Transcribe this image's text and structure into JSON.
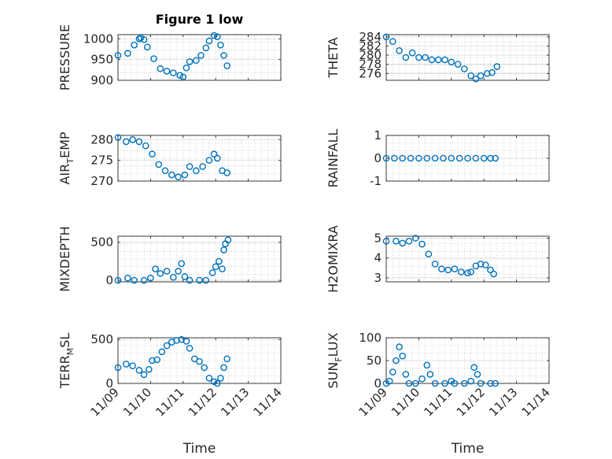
{
  "chart_data": [
    {
      "type": "scatter",
      "title": "Figure 1 low",
      "ylabel": "PRESSURE",
      "ylabel_sub": "",
      "ylabel_rest": "",
      "xlim": [
        0,
        5
      ],
      "ylim": [
        900,
        1010
      ],
      "yticks": [
        900,
        950,
        1000
      ],
      "xticks": [
        0,
        1,
        2,
        3,
        4,
        5
      ],
      "xticklabels": [
        "",
        "",
        "",
        "",
        "",
        ""
      ],
      "xlabel": "",
      "color": "#0072BD",
      "grid": true,
      "points": [
        [
          0,
          960
        ],
        [
          0.3,
          965
        ],
        [
          0.5,
          985
        ],
        [
          0.65,
          1000
        ],
        [
          0.7,
          1002
        ],
        [
          0.8,
          998
        ],
        [
          0.9,
          980
        ],
        [
          1.1,
          952
        ],
        [
          1.3,
          928
        ],
        [
          1.5,
          922
        ],
        [
          1.7,
          918
        ],
        [
          1.9,
          912
        ],
        [
          2.0,
          908
        ],
        [
          2.1,
          930
        ],
        [
          2.2,
          945
        ],
        [
          2.4,
          948
        ],
        [
          2.55,
          960
        ],
        [
          2.7,
          978
        ],
        [
          2.8,
          995
        ],
        [
          2.95,
          1008
        ],
        [
          3.05,
          1005
        ],
        [
          3.15,
          985
        ],
        [
          3.25,
          960
        ],
        [
          3.35,
          935
        ]
      ]
    },
    {
      "type": "scatter",
      "title": "",
      "ylabel": "THETA",
      "ylabel_sub": "",
      "ylabel_rest": "",
      "xlim": [
        0,
        5
      ],
      "ylim": [
        274.5,
        284.5
      ],
      "yticks": [
        276,
        278,
        280,
        282,
        284
      ],
      "xticks": [
        0,
        1,
        2,
        3,
        4,
        5
      ],
      "xticklabels": [
        "",
        "",
        "",
        "",
        "",
        ""
      ],
      "xlabel": "",
      "color": "#0072BD",
      "grid": true,
      "points": [
        [
          0,
          284
        ],
        [
          0.2,
          283
        ],
        [
          0.4,
          281
        ],
        [
          0.6,
          279.5
        ],
        [
          0.8,
          280.5
        ],
        [
          1.0,
          279.5
        ],
        [
          1.2,
          279.5
        ],
        [
          1.4,
          279
        ],
        [
          1.6,
          279
        ],
        [
          1.8,
          279
        ],
        [
          2.0,
          278.5
        ],
        [
          2.2,
          278
        ],
        [
          2.4,
          277
        ],
        [
          2.6,
          275.5
        ],
        [
          2.75,
          274.8
        ],
        [
          2.9,
          275.5
        ],
        [
          3.1,
          276
        ],
        [
          3.25,
          276.2
        ],
        [
          3.4,
          277.5
        ]
      ]
    },
    {
      "type": "scatter",
      "title": "",
      "ylabel": "AIR",
      "ylabel_sub": "T",
      "ylabel_rest": "EMP",
      "xlim": [
        0,
        5
      ],
      "ylim": [
        270,
        281
      ],
      "yticks": [
        270,
        275,
        280
      ],
      "xticks": [
        0,
        1,
        2,
        3,
        4,
        5
      ],
      "xticklabels": [
        "",
        "",
        "",
        "",
        "",
        ""
      ],
      "xlabel": "",
      "color": "#0072BD",
      "grid": true,
      "points": [
        [
          0,
          280.5
        ],
        [
          0.25,
          279.5
        ],
        [
          0.45,
          280
        ],
        [
          0.65,
          279.5
        ],
        [
          0.85,
          278.5
        ],
        [
          1.05,
          276.5
        ],
        [
          1.25,
          274
        ],
        [
          1.45,
          272.5
        ],
        [
          1.65,
          271.5
        ],
        [
          1.85,
          271
        ],
        [
          2.05,
          271.5
        ],
        [
          2.2,
          273.5
        ],
        [
          2.4,
          272.5
        ],
        [
          2.6,
          273.5
        ],
        [
          2.8,
          275
        ],
        [
          2.95,
          276.5
        ],
        [
          3.05,
          275.5
        ],
        [
          3.2,
          272.5
        ],
        [
          3.35,
          272
        ]
      ]
    },
    {
      "type": "scatter",
      "title": "",
      "ylabel": "RAINFALL",
      "ylabel_sub": "",
      "ylabel_rest": "",
      "xlim": [
        0,
        5
      ],
      "ylim": [
        -1,
        1
      ],
      "yticks": [
        -1,
        0,
        1
      ],
      "xticks": [
        0,
        1,
        2,
        3,
        4,
        5
      ],
      "xticklabels": [
        "",
        "",
        "",
        "",
        "",
        ""
      ],
      "xlabel": "",
      "color": "#0072BD",
      "grid": true,
      "points": [
        [
          0,
          0
        ],
        [
          0.25,
          0
        ],
        [
          0.5,
          0
        ],
        [
          0.75,
          0
        ],
        [
          1.0,
          0
        ],
        [
          1.25,
          0
        ],
        [
          1.5,
          0
        ],
        [
          1.75,
          0
        ],
        [
          2.0,
          0
        ],
        [
          2.25,
          0
        ],
        [
          2.5,
          0
        ],
        [
          2.75,
          0
        ],
        [
          3.0,
          0
        ],
        [
          3.2,
          0
        ],
        [
          3.35,
          0
        ]
      ]
    },
    {
      "type": "scatter",
      "title": "",
      "ylabel": "MIXDEPTH",
      "ylabel_sub": "",
      "ylabel_rest": "",
      "xlim": [
        0,
        5
      ],
      "ylim": [
        -20,
        580
      ],
      "yticks": [
        0,
        500
      ],
      "xticks": [
        0,
        1,
        2,
        3,
        4,
        5
      ],
      "xticklabels": [
        "",
        "",
        "",
        "",
        "",
        ""
      ],
      "xlabel": "",
      "color": "#0072BD",
      "grid": true,
      "points": [
        [
          0,
          0
        ],
        [
          0.3,
          30
        ],
        [
          0.5,
          0
        ],
        [
          0.8,
          0
        ],
        [
          1.0,
          30
        ],
        [
          1.15,
          150
        ],
        [
          1.3,
          90
        ],
        [
          1.5,
          120
        ],
        [
          1.7,
          40
        ],
        [
          1.85,
          120
        ],
        [
          1.95,
          220
        ],
        [
          2.05,
          50
        ],
        [
          2.2,
          0
        ],
        [
          2.5,
          0
        ],
        [
          2.7,
          0
        ],
        [
          2.9,
          100
        ],
        [
          3.0,
          180
        ],
        [
          3.1,
          250
        ],
        [
          3.2,
          150
        ],
        [
          3.25,
          400
        ],
        [
          3.3,
          480
        ],
        [
          3.38,
          530
        ]
      ]
    },
    {
      "type": "scatter",
      "title": "",
      "ylabel": "H2OMIXRA",
      "ylabel_sub": "",
      "ylabel_rest": "",
      "xlim": [
        0,
        5
      ],
      "ylim": [
        2.8,
        5.1
      ],
      "yticks": [
        3,
        4,
        5
      ],
      "xticks": [
        0,
        1,
        2,
        3,
        4,
        5
      ],
      "xticklabels": [
        "",
        "",
        "",
        "",
        "",
        ""
      ],
      "xlabel": "",
      "color": "#0072BD",
      "grid": true,
      "points": [
        [
          0,
          4.85
        ],
        [
          0.3,
          4.85
        ],
        [
          0.5,
          4.75
        ],
        [
          0.7,
          4.85
        ],
        [
          0.9,
          5.0
        ],
        [
          1.1,
          4.7
        ],
        [
          1.3,
          4.2
        ],
        [
          1.5,
          3.7
        ],
        [
          1.7,
          3.45
        ],
        [
          1.9,
          3.4
        ],
        [
          2.1,
          3.45
        ],
        [
          2.3,
          3.3
        ],
        [
          2.5,
          3.25
        ],
        [
          2.6,
          3.3
        ],
        [
          2.75,
          3.6
        ],
        [
          2.9,
          3.7
        ],
        [
          3.05,
          3.65
        ],
        [
          3.2,
          3.4
        ],
        [
          3.3,
          3.2
        ]
      ]
    },
    {
      "type": "scatter",
      "title": "",
      "ylabel": "TERR",
      "ylabel_sub": "M",
      "ylabel_rest": "SL",
      "xlim": [
        0,
        5
      ],
      "ylim": [
        0,
        520
      ],
      "yticks": [
        0,
        500
      ],
      "xticks": [
        0,
        1,
        2,
        3,
        4,
        5
      ],
      "xticklabels": [
        "11/09",
        "11/10",
        "11/11",
        "11/12",
        "11/13",
        "11/14"
      ],
      "xlabel": "Time",
      "color": "#0072BD",
      "grid": true,
      "points": [
        [
          0,
          180
        ],
        [
          0.25,
          220
        ],
        [
          0.45,
          200
        ],
        [
          0.65,
          150
        ],
        [
          0.8,
          100
        ],
        [
          0.95,
          160
        ],
        [
          1.05,
          260
        ],
        [
          1.2,
          270
        ],
        [
          1.35,
          360
        ],
        [
          1.5,
          430
        ],
        [
          1.65,
          470
        ],
        [
          1.8,
          490
        ],
        [
          1.95,
          500
        ],
        [
          2.1,
          480
        ],
        [
          2.2,
          400
        ],
        [
          2.35,
          280
        ],
        [
          2.5,
          250
        ],
        [
          2.65,
          180
        ],
        [
          2.8,
          60
        ],
        [
          2.95,
          20
        ],
        [
          3.05,
          0
        ],
        [
          3.15,
          60
        ],
        [
          3.25,
          180
        ],
        [
          3.35,
          280
        ]
      ]
    },
    {
      "type": "scatter",
      "title": "",
      "ylabel": "SUN",
      "ylabel_sub": "F",
      "ylabel_rest": "LUX",
      "xlim": [
        0,
        5
      ],
      "ylim": [
        0,
        100
      ],
      "yticks": [
        0,
        50,
        100
      ],
      "xticks": [
        0,
        1,
        2,
        3,
        4,
        5
      ],
      "xticklabels": [
        "11/09",
        "11/10",
        "11/11",
        "11/12",
        "11/13",
        "11/14"
      ],
      "xlabel": "Time",
      "color": "#0072BD",
      "grid": true,
      "points": [
        [
          0,
          0
        ],
        [
          0.1,
          5
        ],
        [
          0.2,
          25
        ],
        [
          0.3,
          50
        ],
        [
          0.4,
          80
        ],
        [
          0.5,
          60
        ],
        [
          0.6,
          20
        ],
        [
          0.7,
          0
        ],
        [
          0.9,
          0
        ],
        [
          1.1,
          10
        ],
        [
          1.25,
          40
        ],
        [
          1.35,
          20
        ],
        [
          1.5,
          0
        ],
        [
          1.8,
          0
        ],
        [
          2.0,
          5
        ],
        [
          2.1,
          0
        ],
        [
          2.4,
          0
        ],
        [
          2.6,
          5
        ],
        [
          2.7,
          35
        ],
        [
          2.8,
          20
        ],
        [
          2.9,
          0
        ],
        [
          3.2,
          0
        ],
        [
          3.35,
          0
        ]
      ]
    }
  ]
}
